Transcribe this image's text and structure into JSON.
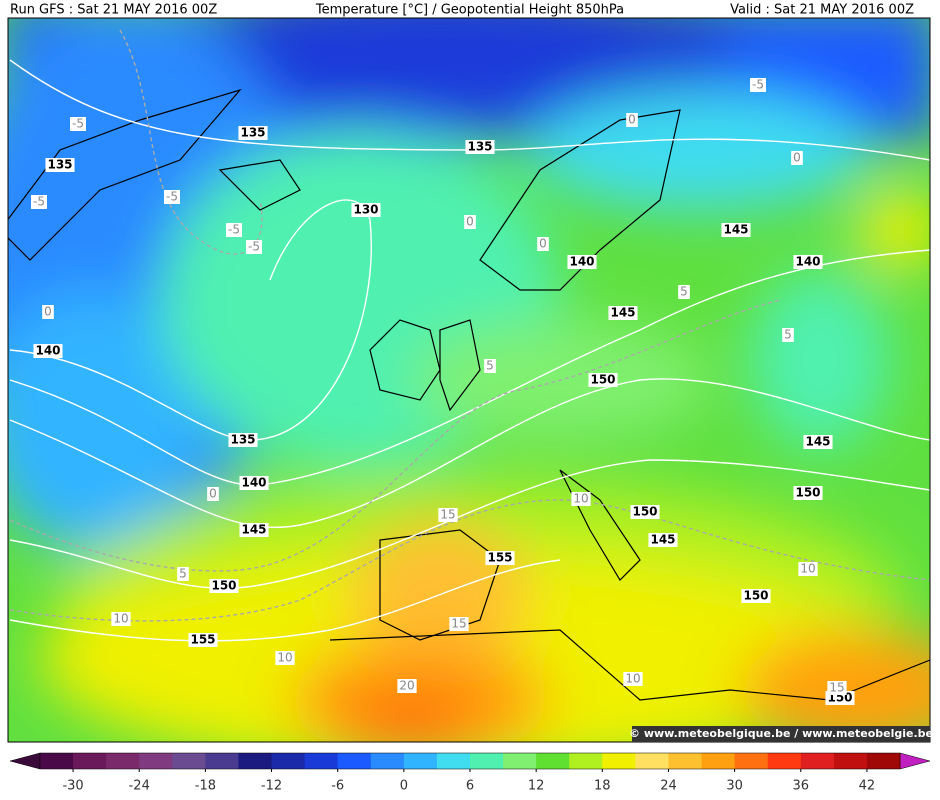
{
  "header": {
    "run": "Run GFS : Sat 21 MAY 2016 00Z",
    "title": "Temperature [°C] / Geopotential Height 850hPa",
    "valid": "Valid : Sat 21 MAY 2016 00Z"
  },
  "map": {
    "height_labels": [
      135,
      135,
      135,
      130,
      140,
      145,
      140,
      145,
      140,
      150,
      135,
      145,
      140,
      150,
      150,
      145,
      145,
      155,
      150,
      150,
      155,
      150
    ],
    "temperature_labels": [
      -5,
      -5,
      -5,
      -5,
      -5,
      -5,
      0,
      0,
      0,
      0,
      0,
      5,
      5,
      5,
      0,
      10,
      15,
      5,
      10,
      10,
      15,
      10,
      10,
      20,
      15
    ],
    "watermark": "© www.meteobelgique.be / www.meteobelgie.be"
  },
  "colorbar": {
    "range": [
      -33,
      45
    ],
    "ticks": [
      -30,
      -24,
      -18,
      -12,
      -6,
      0,
      6,
      12,
      18,
      24,
      30,
      36,
      42
    ],
    "colors": [
      "#4a0a4a",
      "#6a1a5a",
      "#7a2a6a",
      "#803a80",
      "#6a4a90",
      "#4a3a90",
      "#1a1a80",
      "#1a2aa8",
      "#1a3ad8",
      "#1a5aff",
      "#2a8aff",
      "#30b4ff",
      "#40dcf0",
      "#50f0b0",
      "#80f070",
      "#60e030",
      "#b0f020",
      "#f0f000",
      "#ffe060",
      "#ffc030",
      "#ffa010",
      "#ff7010",
      "#ff3a10",
      "#e02020",
      "#c01010",
      "#a00808"
    ],
    "low_color": "#3a0a3a",
    "high_color": "#c020c0"
  }
}
